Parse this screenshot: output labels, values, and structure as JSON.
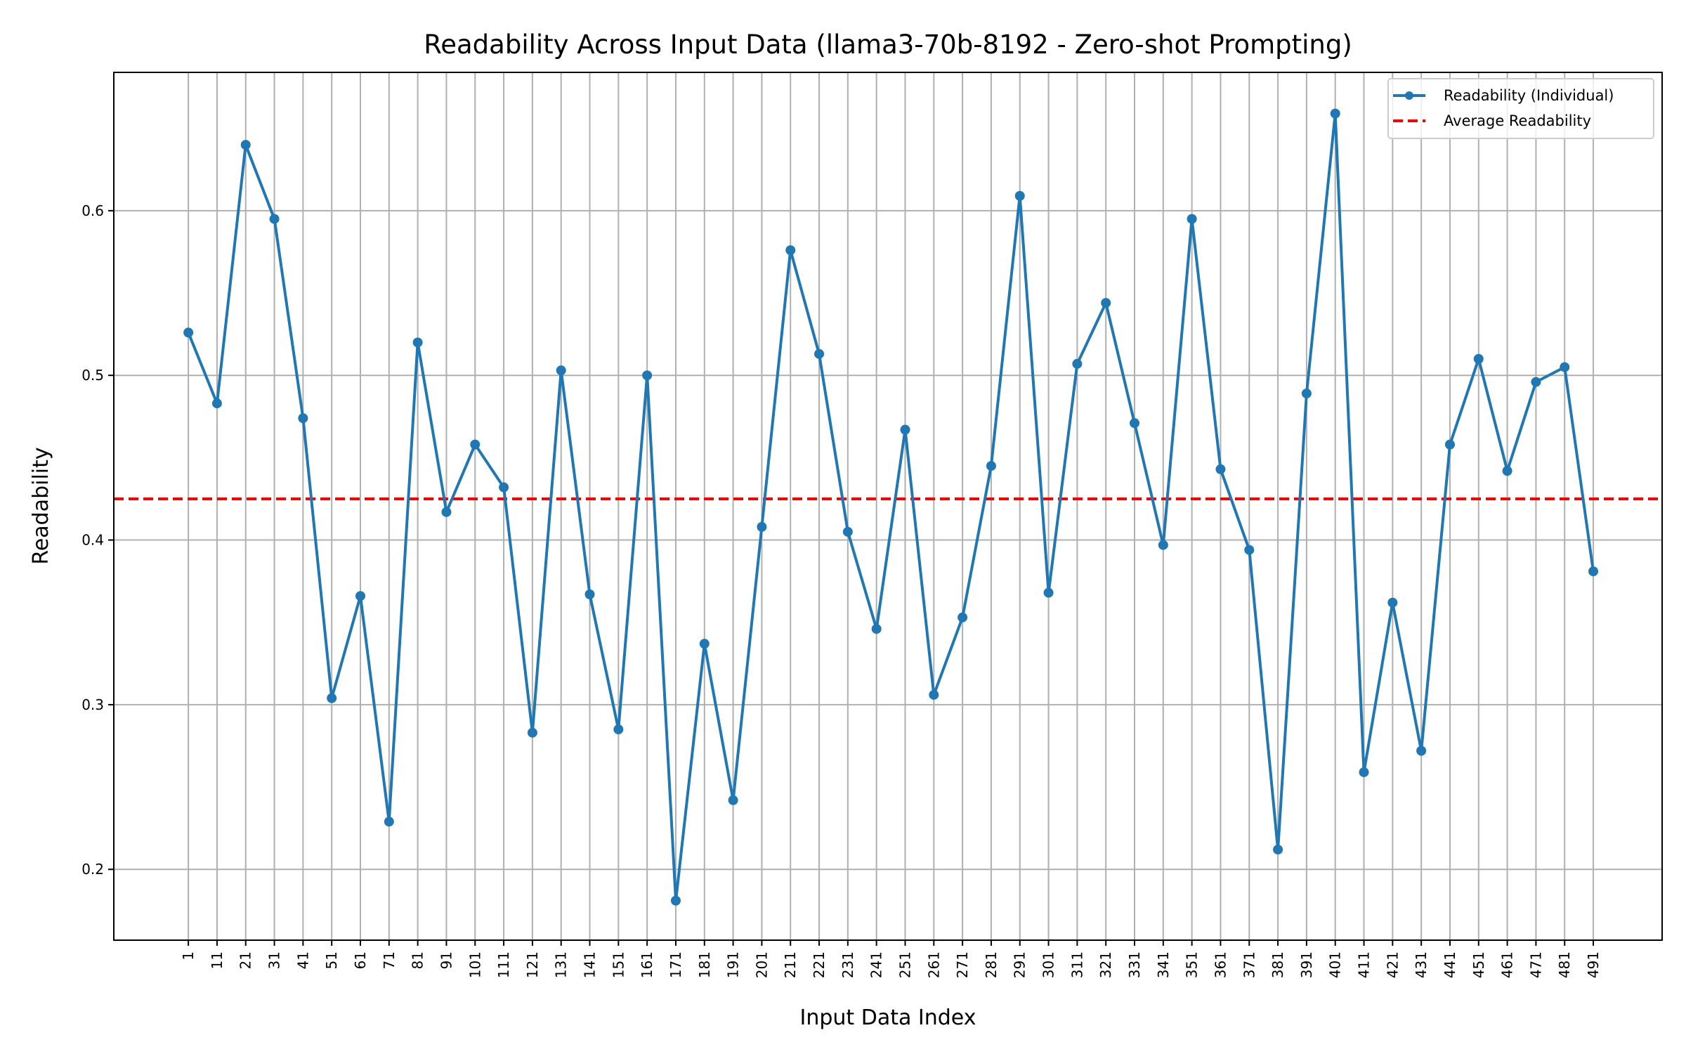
{
  "chart_data": {
    "type": "line",
    "title": "Readability Across Input Data (llama3-70b-8192 - Zero-shot Prompting)",
    "xlabel": "Input Data Index",
    "ylabel": "Readability",
    "x": [
      1,
      11,
      21,
      31,
      41,
      51,
      61,
      71,
      81,
      91,
      101,
      111,
      121,
      131,
      141,
      151,
      161,
      171,
      181,
      191,
      201,
      211,
      221,
      231,
      241,
      251,
      261,
      271,
      281,
      291,
      301,
      311,
      321,
      331,
      341,
      351,
      361,
      371,
      381,
      391,
      401,
      411,
      421,
      431,
      441,
      451,
      461,
      471,
      481,
      491
    ],
    "series": [
      {
        "name": "Readability (Individual)",
        "color": "#1f77b4",
        "values": [
          0.526,
          0.483,
          0.64,
          0.595,
          0.474,
          0.304,
          0.366,
          0.229,
          0.52,
          0.417,
          0.458,
          0.432,
          0.283,
          0.503,
          0.367,
          0.285,
          0.5,
          0.181,
          0.337,
          0.242,
          0.408,
          0.576,
          0.513,
          0.405,
          0.346,
          0.467,
          0.306,
          0.353,
          0.445,
          0.609,
          0.368,
          0.507,
          0.544,
          0.471,
          0.397,
          0.595,
          0.443,
          0.394,
          0.212,
          0.489,
          0.659,
          0.259,
          0.362,
          0.272,
          0.458,
          0.51,
          0.442,
          0.496,
          0.505,
          0.381
        ]
      }
    ],
    "average": {
      "name": "Average Readability",
      "value": 0.425,
      "color": "#ff0000"
    },
    "xlim": [
      -25,
      515
    ],
    "ylim": [
      0.157,
      0.684
    ],
    "yticks": [
      0.2,
      0.3,
      0.4,
      0.5,
      0.6
    ],
    "ytick_labels": [
      "0.2",
      "0.3",
      "0.4",
      "0.5",
      "0.6"
    ],
    "xtick_labels": [
      "1",
      "11",
      "21",
      "31",
      "41",
      "51",
      "61",
      "71",
      "81",
      "91",
      "101",
      "111",
      "121",
      "131",
      "141",
      "151",
      "161",
      "171",
      "181",
      "191",
      "201",
      "211",
      "221",
      "231",
      "241",
      "251",
      "261",
      "271",
      "281",
      "291",
      "301",
      "311",
      "321",
      "331",
      "341",
      "351",
      "361",
      "371",
      "381",
      "391",
      "401",
      "411",
      "421",
      "431",
      "441",
      "451",
      "461",
      "471",
      "481",
      "491"
    ],
    "grid": true,
    "legend_position": "top-right",
    "legend": [
      "Readability (Individual)",
      "Average Readability"
    ]
  }
}
